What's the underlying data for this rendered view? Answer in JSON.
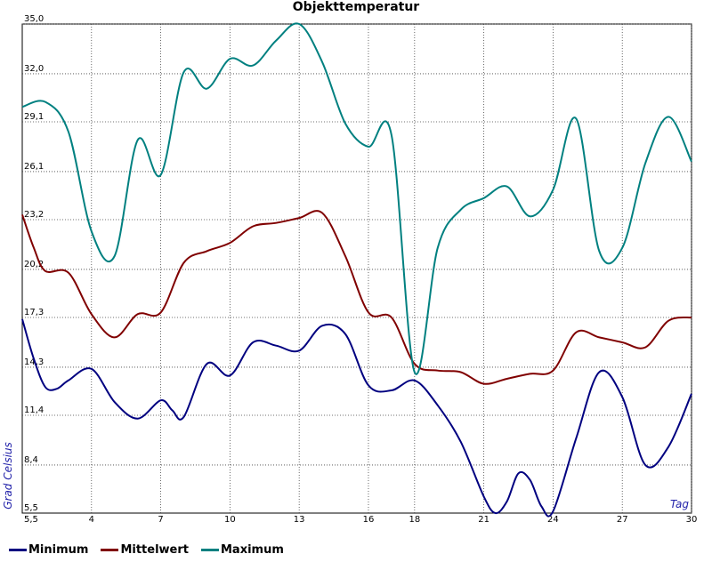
{
  "chart_data": {
    "type": "line",
    "title": "Objekttemperatur",
    "ylabel": "Grad Celsius",
    "xlabel": "Tag",
    "ylim": [
      5.5,
      35.0
    ],
    "xlim": [
      1,
      30
    ],
    "y_ticks": [
      "5,5",
      "8,4",
      "11,4",
      "14,3",
      "17,3",
      "20,2",
      "23,2",
      "26,1",
      "29,1",
      "32,0",
      "35,0"
    ],
    "x_ticks": [
      "4",
      "7",
      "10",
      "13",
      "16",
      "18",
      "21",
      "24",
      "27",
      "30"
    ],
    "grid": true,
    "legend_position": "bottom-left",
    "series": [
      {
        "name": "Minimum",
        "color": "#000080",
        "points": [
          [
            1,
            17.2
          ],
          [
            1.5,
            14.8
          ],
          [
            2,
            13.1
          ],
          [
            2.5,
            13
          ],
          [
            3,
            13.5
          ],
          [
            4,
            14.2
          ],
          [
            5,
            12.2
          ],
          [
            6,
            11.2
          ],
          [
            7,
            12.3
          ],
          [
            7.5,
            11.7
          ],
          [
            8,
            11.3
          ],
          [
            9,
            14.5
          ],
          [
            10,
            13.8
          ],
          [
            11,
            15.8
          ],
          [
            12,
            15.6
          ],
          [
            13,
            15.3
          ],
          [
            14,
            16.8
          ],
          [
            15,
            16.3
          ],
          [
            16,
            13.2
          ],
          [
            17,
            12.9
          ],
          [
            18,
            13.5
          ],
          [
            19,
            12
          ],
          [
            20,
            9.8
          ],
          [
            21,
            6.5
          ],
          [
            21.5,
            5.5
          ],
          [
            22,
            6.2
          ],
          [
            22.5,
            7.9
          ],
          [
            23,
            7.5
          ],
          [
            23.5,
            5.9
          ],
          [
            24,
            5.6
          ],
          [
            25,
            10
          ],
          [
            26,
            14
          ],
          [
            27,
            12.5
          ],
          [
            28,
            8.4
          ],
          [
            29,
            9.5
          ],
          [
            30,
            12.7
          ]
        ]
      },
      {
        "name": "Mittelwert",
        "color": "#800000",
        "points": [
          [
            1,
            23.5
          ],
          [
            1.5,
            21.5
          ],
          [
            2,
            20.1
          ],
          [
            3,
            20
          ],
          [
            4,
            17.5
          ],
          [
            5,
            16.1
          ],
          [
            6,
            17.5
          ],
          [
            7,
            17.6
          ],
          [
            8,
            20.6
          ],
          [
            9,
            21.3
          ],
          [
            10,
            21.8
          ],
          [
            11,
            22.8
          ],
          [
            12,
            23
          ],
          [
            13,
            23.3
          ],
          [
            14,
            23.6
          ],
          [
            15,
            21
          ],
          [
            16,
            17.6
          ],
          [
            17,
            17.3
          ],
          [
            18,
            14.5
          ],
          [
            19,
            14.1
          ],
          [
            20,
            14
          ],
          [
            21,
            13.3
          ],
          [
            22,
            13.6
          ],
          [
            23,
            13.9
          ],
          [
            24,
            14.1
          ],
          [
            25,
            16.4
          ],
          [
            26,
            16.1
          ],
          [
            27,
            15.8
          ],
          [
            28,
            15.5
          ],
          [
            29,
            17.1
          ],
          [
            30,
            17.3
          ]
        ]
      },
      {
        "name": "Maximum",
        "color": "#008080",
        "points": [
          [
            1,
            30
          ],
          [
            2,
            30.3
          ],
          [
            3,
            28.5
          ],
          [
            4,
            22.5
          ],
          [
            5,
            21
          ],
          [
            6,
            28
          ],
          [
            7,
            25.9
          ],
          [
            8,
            32.1
          ],
          [
            9,
            31.1
          ],
          [
            10,
            32.9
          ],
          [
            11,
            32.5
          ],
          [
            12,
            34
          ],
          [
            13,
            35
          ],
          [
            14,
            32.7
          ],
          [
            15,
            29
          ],
          [
            16,
            27.6
          ],
          [
            17,
            28.3
          ],
          [
            18,
            14
          ],
          [
            19,
            21.5
          ],
          [
            20,
            23.8
          ],
          [
            21,
            24.5
          ],
          [
            22,
            25.2
          ],
          [
            23,
            23.4
          ],
          [
            24,
            25
          ],
          [
            25,
            29.3
          ],
          [
            26,
            21.3
          ],
          [
            27,
            21.5
          ],
          [
            28,
            26.6
          ],
          [
            29,
            29.4
          ],
          [
            30,
            26.7
          ]
        ]
      }
    ]
  }
}
